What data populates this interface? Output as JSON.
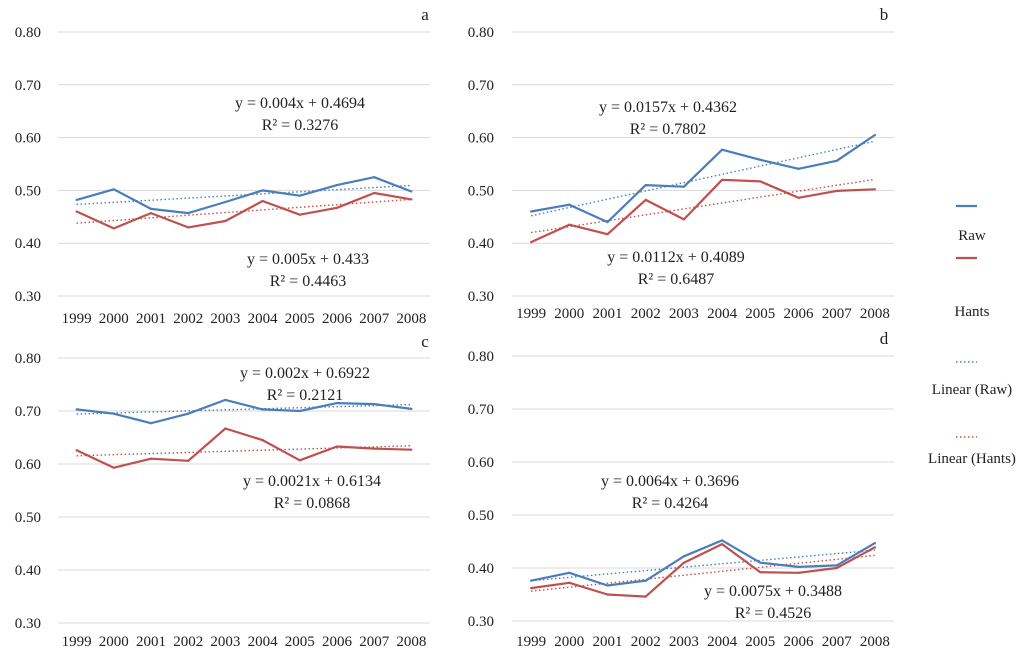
{
  "chart_data": [
    {
      "panel": "a",
      "type": "line",
      "categories": [
        "1999",
        "2000",
        "2001",
        "2002",
        "2003",
        "2004",
        "2005",
        "2006",
        "2007",
        "2008"
      ],
      "ylim": [
        0.3,
        0.8
      ],
      "yticks": [
        "0.80",
        "0.70",
        "0.60",
        "0.50",
        "0.40",
        "0.30"
      ],
      "series": [
        {
          "name": "Raw",
          "values": [
            0.482,
            0.502,
            0.465,
            0.457,
            0.478,
            0.5,
            0.49,
            0.51,
            0.525,
            0.498
          ]
        },
        {
          "name": "Hants",
          "values": [
            0.46,
            0.428,
            0.457,
            0.43,
            0.442,
            0.48,
            0.454,
            0.467,
            0.495,
            0.483
          ]
        }
      ],
      "trend_raw": {
        "slope": 0.004,
        "intercept": 0.4694
      },
      "trend_hants": {
        "slope": 0.005,
        "intercept": 0.433
      },
      "eq_raw": "y = 0.004x + 0.4694",
      "r2_raw": "R² = 0.3276",
      "eq_hants": "y = 0.005x + 0.433",
      "r2_hants": "R² = 0.4463"
    },
    {
      "panel": "b",
      "type": "line",
      "categories": [
        "1999",
        "2000",
        "2001",
        "2002",
        "2003",
        "2004",
        "2005",
        "2006",
        "2007",
        "2008"
      ],
      "ylim": [
        0.3,
        0.8
      ],
      "yticks": [
        "0.80",
        "0.70",
        "0.60",
        "0.50",
        "0.40",
        "0.30"
      ],
      "series": [
        {
          "name": "Raw",
          "values": [
            0.46,
            0.473,
            0.44,
            0.51,
            0.507,
            0.577,
            0.558,
            0.541,
            0.556,
            0.605
          ]
        },
        {
          "name": "Hants",
          "values": [
            0.402,
            0.435,
            0.417,
            0.482,
            0.445,
            0.52,
            0.517,
            0.486,
            0.499,
            0.502
          ]
        }
      ],
      "trend_raw": {
        "slope": 0.0157,
        "intercept": 0.4362
      },
      "trend_hants": {
        "slope": 0.0112,
        "intercept": 0.4089
      },
      "eq_raw": "y = 0.0157x + 0.4362",
      "r2_raw": "R² = 0.7802",
      "eq_hants": "y = 0.0112x + 0.4089",
      "r2_hants": "R² = 0.6487"
    },
    {
      "panel": "c",
      "type": "line",
      "categories": [
        "1999",
        "2000",
        "2001",
        "2002",
        "2003",
        "2004",
        "2005",
        "2006",
        "2007",
        "2008"
      ],
      "ylim": [
        0.3,
        0.8
      ],
      "yticks": [
        "0.80",
        "0.70",
        "0.60",
        "0.50",
        "0.40",
        "0.30"
      ],
      "series": [
        {
          "name": "Raw",
          "values": [
            0.703,
            0.695,
            0.677,
            0.695,
            0.721,
            0.703,
            0.7,
            0.715,
            0.713,
            0.704
          ]
        },
        {
          "name": "Hants",
          "values": [
            0.626,
            0.593,
            0.61,
            0.606,
            0.667,
            0.645,
            0.607,
            0.633,
            0.629,
            0.627
          ]
        }
      ],
      "trend_raw": {
        "slope": 0.002,
        "intercept": 0.6922
      },
      "trend_hants": {
        "slope": 0.0021,
        "intercept": 0.6134
      },
      "eq_raw": "y = 0.002x + 0.6922",
      "r2_raw": "R² = 0.2121",
      "eq_hants": "y = 0.0021x + 0.6134",
      "r2_hants": "R² = 0.0868"
    },
    {
      "panel": "d",
      "type": "line",
      "categories": [
        "1999",
        "2000",
        "2001",
        "2002",
        "2003",
        "2004",
        "2005",
        "2006",
        "2007",
        "2008"
      ],
      "ylim": [
        0.3,
        0.8
      ],
      "yticks": [
        "0.80",
        "0.70",
        "0.60",
        "0.50",
        "0.40",
        "0.30"
      ],
      "series": [
        {
          "name": "Raw",
          "values": [
            0.376,
            0.391,
            0.367,
            0.376,
            0.422,
            0.452,
            0.41,
            0.402,
            0.405,
            0.447
          ]
        },
        {
          "name": "Hants",
          "values": [
            0.362,
            0.372,
            0.35,
            0.346,
            0.41,
            0.445,
            0.392,
            0.391,
            0.4,
            0.439
          ]
        }
      ],
      "trend_raw": {
        "slope": 0.0064,
        "intercept": 0.3696
      },
      "trend_hants": {
        "slope": 0.0075,
        "intercept": 0.3488
      },
      "eq_raw": "y = 0.0064x + 0.3696",
      "r2_raw": "R² = 0.4264",
      "eq_hants": "y = 0.0075x + 0.3488",
      "r2_hants": "R² = 0.4526"
    }
  ],
  "legend": {
    "items": [
      {
        "label": "Raw",
        "color": "#4a7ebb",
        "style": "solid"
      },
      {
        "label": "Hants",
        "color": "#c0504d",
        "style": "solid"
      },
      {
        "label": "Linear (Raw)",
        "color": "#4a7ebb",
        "style": "dotted"
      },
      {
        "label": "Linear (Hants)",
        "color": "#c0504d",
        "style": "dotted"
      }
    ]
  },
  "colors": {
    "raw": "#4a7ebb",
    "hants": "#c0504d",
    "grid": "#d9d9d9",
    "text": "#222222"
  }
}
